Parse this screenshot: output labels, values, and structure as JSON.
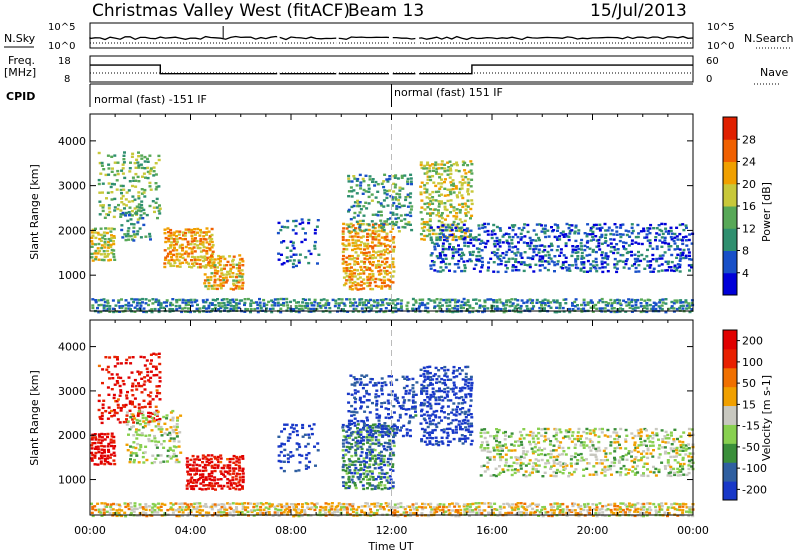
{
  "header": {
    "station": "Christmas Valley West (fitACF)",
    "beam": "Beam 13",
    "date": "15/Jul/2013"
  },
  "strip": {
    "nsky_label": "N.Sky",
    "nsky_ticks": [
      "10^5",
      "10^0"
    ],
    "nsearch_label": "N.Search",
    "nsearch_ticks": [
      "10^5",
      "10^0"
    ],
    "freq_label": "Freq.",
    "freq_unit": "[MHz]",
    "freq_ticks": [
      "18",
      "8"
    ],
    "nave_label": "Nave",
    "nave_ticks": [
      "60",
      "0"
    ],
    "cpid_label": "CPID",
    "cpid_segments": [
      "normal (fast) -151 IF",
      "normal (fast) 151 IF"
    ],
    "cpid_change_hour": 12,
    "freq_steps": [
      [
        0,
        14.5
      ],
      [
        2.8,
        14.5
      ],
      [
        2.8,
        11.2
      ],
      [
        15.2,
        11.2
      ],
      [
        15.2,
        14.5
      ],
      [
        24,
        14.5
      ]
    ],
    "data_gaps": [
      [
        7.45,
        7.55
      ],
      [
        9.8,
        9.9
      ],
      [
        11.9,
        12.05
      ],
      [
        12.95,
        13.1
      ]
    ]
  },
  "xaxis": {
    "label": "Time UT",
    "ticks": [
      "00:00",
      "04:00",
      "08:00",
      "12:00",
      "16:00",
      "20:00",
      "00:00"
    ]
  },
  "chart_data": [
    {
      "type": "heatmap",
      "name": "power",
      "ylabel": "Slant Range [km]",
      "yticks": [
        "1000",
        "2000",
        "3000",
        "4000"
      ],
      "ylim": [
        200,
        4600
      ],
      "xlim": [
        0,
        24
      ],
      "colorbar_label": "Power [dB]",
      "colorbar_ticks": [
        "4",
        "8",
        "12",
        "16",
        "20",
        "24",
        "28"
      ],
      "colorbar_range": [
        0,
        32
      ],
      "colors": [
        "#0000d8",
        "#1850c8",
        "#2f8f6f",
        "#57a857",
        "#c8c83a",
        "#f0a000",
        "#f06000",
        "#e02000"
      ],
      "regions": [
        {
          "x0": 0.0,
          "x1": 1.0,
          "y0": 1350,
          "y1": 2100,
          "level": 0.55,
          "density": 0.75
        },
        {
          "x0": 0.3,
          "x1": 2.8,
          "y0": 2300,
          "y1": 3800,
          "level": 0.45,
          "density": 0.35
        },
        {
          "x0": 1.2,
          "x1": 2.4,
          "y0": 1800,
          "y1": 2600,
          "level": 0.35,
          "density": 0.45
        },
        {
          "x0": 2.9,
          "x1": 4.9,
          "y0": 1200,
          "y1": 2100,
          "level": 0.7,
          "density": 0.8
        },
        {
          "x0": 4.5,
          "x1": 6.1,
          "y0": 700,
          "y1": 1500,
          "level": 0.65,
          "density": 0.8
        },
        {
          "x0": 7.4,
          "x1": 9.1,
          "y0": 1200,
          "y1": 2300,
          "level": 0.2,
          "density": 0.25
        },
        {
          "x0": 10.0,
          "x1": 12.1,
          "y0": 700,
          "y1": 2200,
          "level": 0.7,
          "density": 0.75
        },
        {
          "x0": 10.2,
          "x1": 12.8,
          "y0": 2000,
          "y1": 3300,
          "level": 0.35,
          "density": 0.4
        },
        {
          "x0": 13.1,
          "x1": 15.2,
          "y0": 1800,
          "y1": 3600,
          "level": 0.55,
          "density": 0.55
        },
        {
          "x0": 13.5,
          "x1": 24.0,
          "y0": 1100,
          "y1": 2200,
          "level": 0.2,
          "density": 0.5
        },
        {
          "x0": 0.0,
          "x1": 24.0,
          "y0": 200,
          "y1": 520,
          "level": 0.3,
          "density": 0.75
        }
      ]
    },
    {
      "type": "heatmap",
      "name": "velocity",
      "ylabel": "Slant Range [km]",
      "yticks": [
        "1000",
        "2000",
        "3000",
        "4000"
      ],
      "ylim": [
        200,
        4600
      ],
      "xlim": [
        0,
        24
      ],
      "colorbar_label": "Velocity [m s-1]",
      "colorbar_ticks": [
        "200",
        "100",
        "50",
        "15",
        "-15",
        "-50",
        "-100",
        "-200"
      ],
      "colors": [
        "#1838c8",
        "#2f5fa0",
        "#3a8f3a",
        "#88d050",
        "#c8c8c0",
        "#f0a000",
        "#f07000",
        "#e82000",
        "#e00000"
      ],
      "regions": [
        {
          "x0": 0.0,
          "x1": 1.0,
          "y0": 1350,
          "y1": 2100,
          "level": 0.95,
          "density": 0.8
        },
        {
          "x0": 0.3,
          "x1": 2.8,
          "y0": 2300,
          "y1": 3900,
          "level": 0.92,
          "density": 0.35
        },
        {
          "x0": 1.4,
          "x1": 3.6,
          "y0": 1400,
          "y1": 2600,
          "level": 0.45,
          "density": 0.4
        },
        {
          "x0": 3.8,
          "x1": 6.1,
          "y0": 800,
          "y1": 1600,
          "level": 0.95,
          "density": 0.8
        },
        {
          "x0": 7.4,
          "x1": 9.1,
          "y0": 1200,
          "y1": 2300,
          "level": 0.05,
          "density": 0.3
        },
        {
          "x0": 10.0,
          "x1": 12.1,
          "y0": 800,
          "y1": 2300,
          "level": 0.2,
          "density": 0.75
        },
        {
          "x0": 10.2,
          "x1": 13.0,
          "y0": 2000,
          "y1": 3400,
          "level": 0.05,
          "density": 0.45
        },
        {
          "x0": 13.1,
          "x1": 15.2,
          "y0": 1800,
          "y1": 3600,
          "level": 0.02,
          "density": 0.55
        },
        {
          "x0": 15.5,
          "x1": 24.0,
          "y0": 1100,
          "y1": 2200,
          "level": 0.45,
          "density": 0.5
        },
        {
          "x0": 0.0,
          "x1": 24.0,
          "y0": 200,
          "y1": 520,
          "level": 0.55,
          "density": 0.75
        }
      ]
    }
  ]
}
